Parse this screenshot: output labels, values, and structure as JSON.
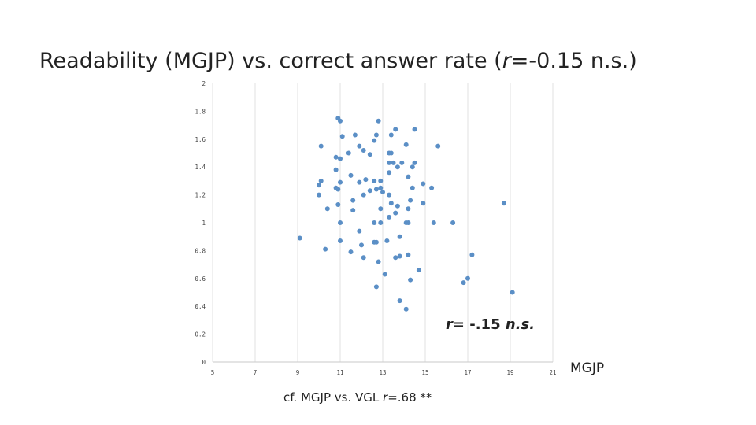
{
  "title": {
    "prefix": "Readability (MGJP) vs. correct answer rate (",
    "r_symbol": "r",
    "suffix": "=-0.15 n.s.)"
  },
  "annotation": {
    "r_symbol": "r",
    "value": "= -.15 ",
    "sig": "n.s."
  },
  "footnote": {
    "prefix": "cf.  MGJP vs. VGL   ",
    "r_symbol": "r",
    "value": "=.68 **"
  },
  "chart_data": {
    "type": "scatter",
    "xlabel": "MGJP",
    "ylabel": "",
    "xlim": [
      5,
      21
    ],
    "ylim": [
      0,
      2
    ],
    "x_ticks": [
      "5",
      "7",
      "9",
      "11",
      "13",
      "15",
      "17",
      "19",
      "21"
    ],
    "y_ticks": [
      "0",
      "0.2",
      "0.4",
      "0.6",
      "0.8",
      "1",
      "1.2",
      "1.4",
      "1.6",
      "1.8",
      "2"
    ],
    "grid": "vertical",
    "point_color": "#5b8fc6",
    "points": [
      [
        10.9,
        1.75
      ],
      [
        11.0,
        1.73
      ],
      [
        12.8,
        1.73
      ],
      [
        13.6,
        1.67
      ],
      [
        14.5,
        1.67
      ],
      [
        11.1,
        1.62
      ],
      [
        11.7,
        1.63
      ],
      [
        12.7,
        1.63
      ],
      [
        13.4,
        1.63
      ],
      [
        12.6,
        1.59
      ],
      [
        10.1,
        1.55
      ],
      [
        11.9,
        1.55
      ],
      [
        14.1,
        1.56
      ],
      [
        15.6,
        1.55
      ],
      [
        12.1,
        1.52
      ],
      [
        11.4,
        1.5
      ],
      [
        12.4,
        1.49
      ],
      [
        13.3,
        1.5
      ],
      [
        13.4,
        1.5
      ],
      [
        10.8,
        1.47
      ],
      [
        11.0,
        1.46
      ],
      [
        13.3,
        1.43
      ],
      [
        13.5,
        1.43
      ],
      [
        13.9,
        1.43
      ],
      [
        14.5,
        1.43
      ],
      [
        13.7,
        1.4
      ],
      [
        14.4,
        1.4
      ],
      [
        10.8,
        1.38
      ],
      [
        13.3,
        1.36
      ],
      [
        11.5,
        1.34
      ],
      [
        14.2,
        1.33
      ],
      [
        12.2,
        1.31
      ],
      [
        10.1,
        1.3
      ],
      [
        11.0,
        1.29
      ],
      [
        11.9,
        1.29
      ],
      [
        12.6,
        1.3
      ],
      [
        12.9,
        1.3
      ],
      [
        14.9,
        1.28
      ],
      [
        10.0,
        1.27
      ],
      [
        10.8,
        1.25
      ],
      [
        10.9,
        1.24
      ],
      [
        12.7,
        1.24
      ],
      [
        12.9,
        1.25
      ],
      [
        14.4,
        1.25
      ],
      [
        15.3,
        1.25
      ],
      [
        12.4,
        1.23
      ],
      [
        13.0,
        1.22
      ],
      [
        12.1,
        1.2
      ],
      [
        10.0,
        1.2
      ],
      [
        13.3,
        1.2
      ],
      [
        11.6,
        1.16
      ],
      [
        14.3,
        1.16
      ],
      [
        13.4,
        1.14
      ],
      [
        14.9,
        1.14
      ],
      [
        18.7,
        1.14
      ],
      [
        13.7,
        1.12
      ],
      [
        10.9,
        1.13
      ],
      [
        10.4,
        1.1
      ],
      [
        11.6,
        1.09
      ],
      [
        12.9,
        1.1
      ],
      [
        14.2,
        1.1
      ],
      [
        13.6,
        1.07
      ],
      [
        13.3,
        1.04
      ],
      [
        11.0,
        1.0
      ],
      [
        12.6,
        1.0
      ],
      [
        12.9,
        1.0
      ],
      [
        14.1,
        1.0
      ],
      [
        14.2,
        1.0
      ],
      [
        15.4,
        1.0
      ],
      [
        16.3,
        1.0
      ],
      [
        11.9,
        0.94
      ],
      [
        13.8,
        0.9
      ],
      [
        9.1,
        0.89
      ],
      [
        11.0,
        0.87
      ],
      [
        13.2,
        0.87
      ],
      [
        12.0,
        0.84
      ],
      [
        12.6,
        0.86
      ],
      [
        12.7,
        0.86
      ],
      [
        10.3,
        0.81
      ],
      [
        11.5,
        0.79
      ],
      [
        13.6,
        0.75
      ],
      [
        13.8,
        0.76
      ],
      [
        14.2,
        0.77
      ],
      [
        17.2,
        0.77
      ],
      [
        12.1,
        0.75
      ],
      [
        12.8,
        0.72
      ],
      [
        14.7,
        0.66
      ],
      [
        13.1,
        0.63
      ],
      [
        14.3,
        0.59
      ],
      [
        16.8,
        0.57
      ],
      [
        17.0,
        0.6
      ],
      [
        12.7,
        0.54
      ],
      [
        19.1,
        0.5
      ],
      [
        13.8,
        0.44
      ],
      [
        14.1,
        0.38
      ]
    ]
  }
}
